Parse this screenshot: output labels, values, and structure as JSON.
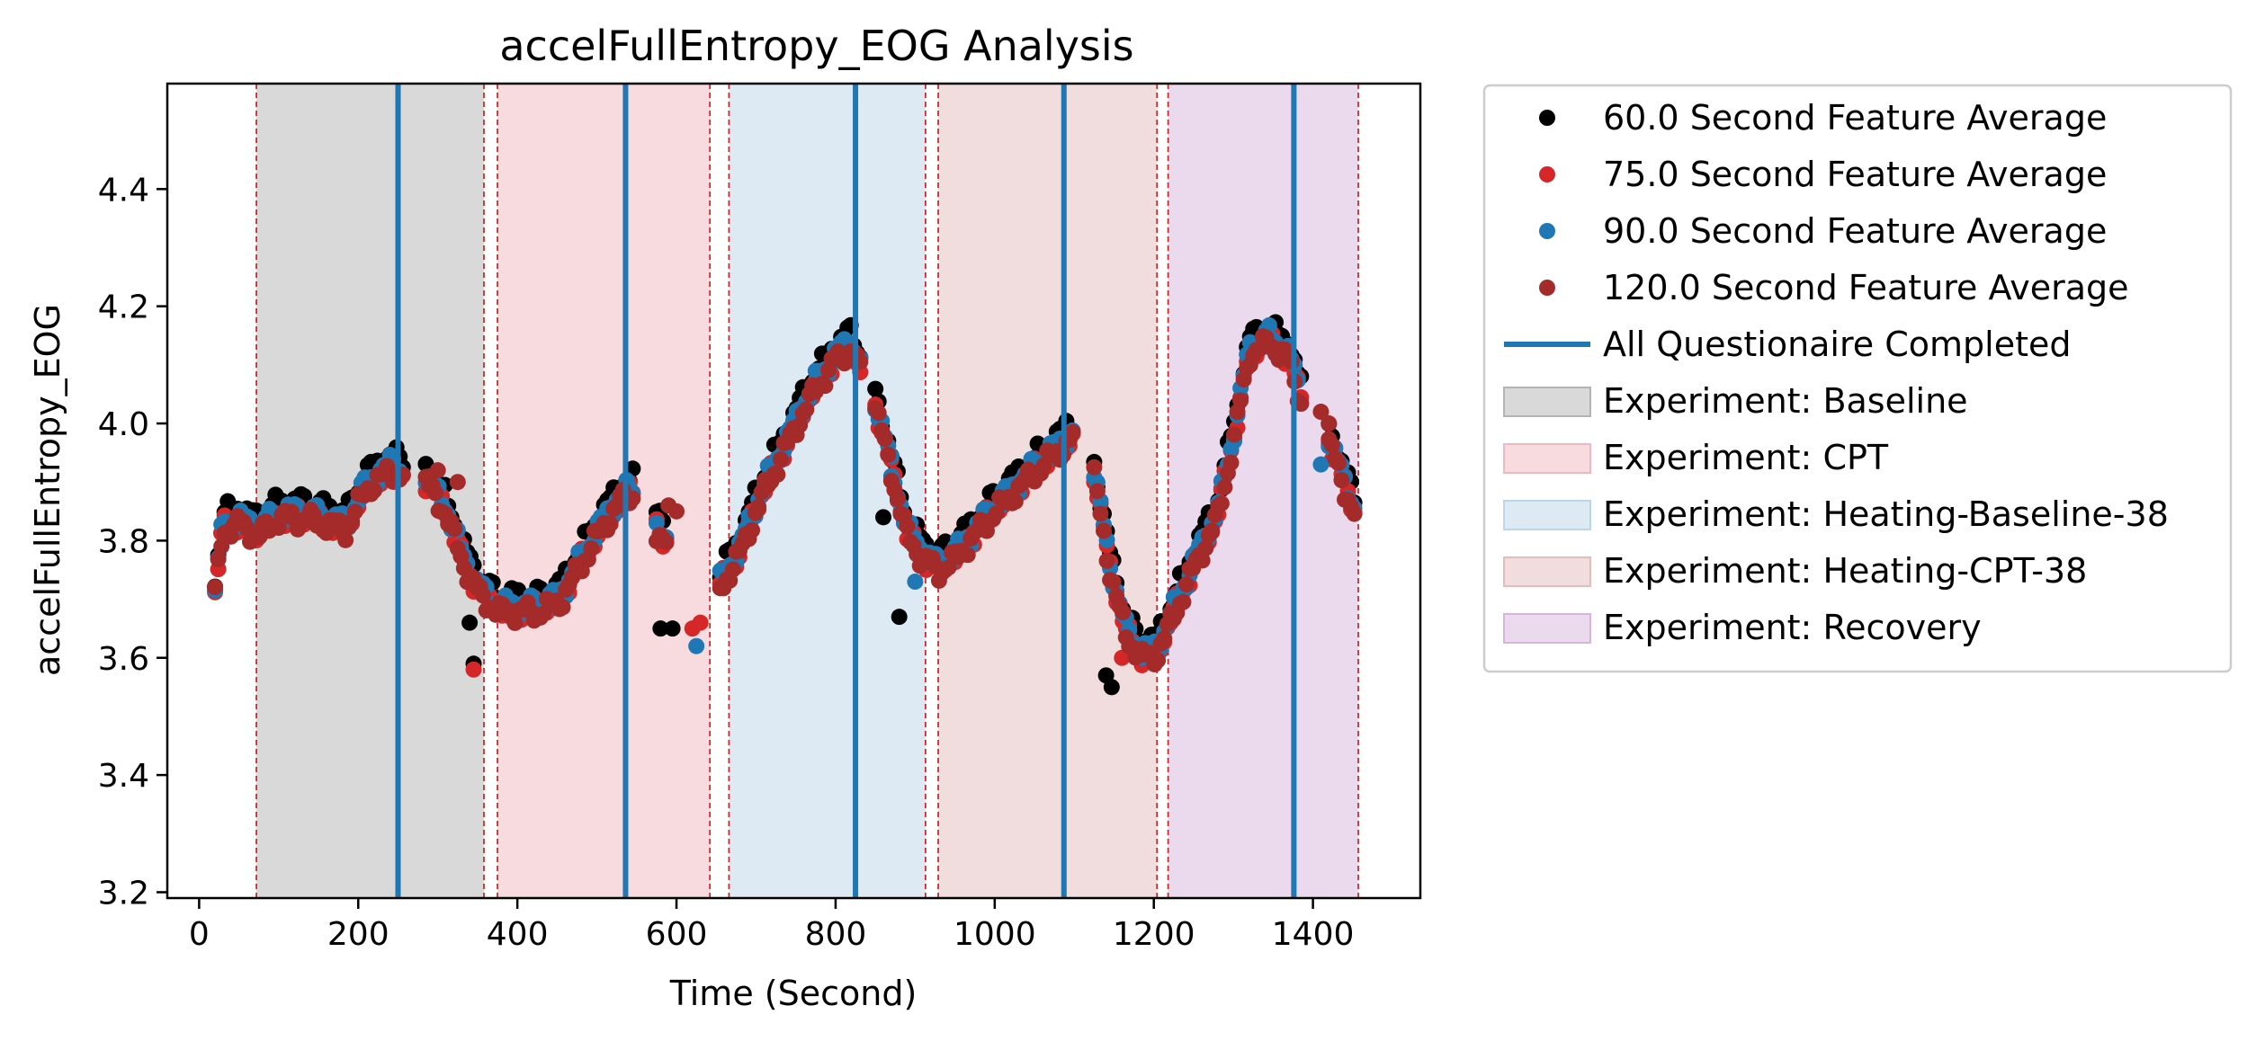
{
  "chart_data": {
    "type": "scatter",
    "title": "accelFullEntropy_EOG Analysis",
    "xlabel": "Time (Second)",
    "ylabel": "accelFullEntropy_EOG",
    "xlim": [
      -40,
      1535
    ],
    "ylim": [
      3.19,
      4.58
    ],
    "xticks": [
      0,
      200,
      400,
      600,
      800,
      1000,
      1200,
      1400
    ],
    "yticks": [
      3.2,
      3.4,
      3.6,
      3.8,
      4.0,
      4.2,
      4.4
    ],
    "xtick_labels": [
      "0",
      "200",
      "400",
      "600",
      "800",
      "1000",
      "1200",
      "1400"
    ],
    "ytick_labels": [
      "3.2",
      "3.4",
      "3.6",
      "3.8",
      "4.0",
      "4.2",
      "4.4"
    ],
    "grid": false,
    "legend_position": "outside-right",
    "experiments": [
      {
        "name": "Experiment: Baseline",
        "start": 72,
        "end": 358,
        "color": "#b3b3b3",
        "alpha": 0.5
      },
      {
        "name": "Experiment: CPT",
        "start": 375,
        "end": 642,
        "color": "#f2b8bf",
        "alpha": 0.5
      },
      {
        "name": "Experiment: Heating-Baseline-38",
        "start": 666,
        "end": 913,
        "color": "#bcd6e9",
        "alpha": 0.5
      },
      {
        "name": "Experiment: Heating-CPT-38",
        "start": 929,
        "end": 1204,
        "color": "#e4bcbc",
        "alpha": 0.5
      },
      {
        "name": "Experiment: Recovery",
        "start": 1218,
        "end": 1457,
        "color": "#d8b4dc",
        "alpha": 0.5
      }
    ],
    "questionnaire_lines": {
      "name": "All Questionaire Completed",
      "color": "#1f77b4",
      "x": [
        250,
        536,
        825,
        1087,
        1376
      ]
    },
    "boundary_lines": {
      "color": "#d62728",
      "x": [
        72,
        358,
        375,
        642,
        666,
        913,
        929,
        1204,
        1218,
        1457
      ]
    },
    "curve_segments": [
      [
        [
          20,
          3.72
        ],
        [
          30,
          3.83
        ],
        [
          50,
          3.84
        ],
        [
          75,
          3.82
        ],
        [
          100,
          3.85
        ],
        [
          130,
          3.85
        ],
        [
          160,
          3.84
        ],
        [
          185,
          3.83
        ],
        [
          210,
          3.9
        ],
        [
          240,
          3.93
        ],
        [
          258,
          3.92
        ]
      ],
      [
        [
          285,
          3.91
        ],
        [
          310,
          3.86
        ],
        [
          330,
          3.78
        ],
        [
          352,
          3.72
        ],
        [
          375,
          3.69
        ],
        [
          400,
          3.69
        ],
        [
          430,
          3.69
        ],
        [
          455,
          3.71
        ],
        [
          480,
          3.77
        ],
        [
          505,
          3.83
        ],
        [
          530,
          3.88
        ],
        [
          548,
          3.89
        ]
      ],
      [
        [
          575,
          3.83
        ],
        [
          590,
          3.8
        ]
      ],
      [
        [
          655,
          3.73
        ],
        [
          680,
          3.79
        ],
        [
          705,
          3.88
        ],
        [
          730,
          3.95
        ],
        [
          755,
          4.02
        ],
        [
          775,
          4.07
        ],
        [
          800,
          4.12
        ],
        [
          818,
          4.14
        ],
        [
          832,
          4.1
        ]
      ],
      [
        [
          850,
          4.04
        ],
        [
          870,
          3.93
        ],
        [
          890,
          3.82
        ],
        [
          910,
          3.78
        ],
        [
          930,
          3.76
        ],
        [
          950,
          3.78
        ],
        [
          975,
          3.82
        ],
        [
          1000,
          3.86
        ],
        [
          1030,
          3.9
        ],
        [
          1060,
          3.94
        ],
        [
          1085,
          3.97
        ],
        [
          1100,
          3.99
        ]
      ],
      [
        [
          1125,
          3.92
        ],
        [
          1145,
          3.76
        ],
        [
          1165,
          3.65
        ],
        [
          1185,
          3.61
        ],
        [
          1205,
          3.62
        ],
        [
          1230,
          3.7
        ],
        [
          1255,
          3.78
        ],
        [
          1280,
          3.85
        ],
        [
          1300,
          3.98
        ],
        [
          1320,
          4.13
        ],
        [
          1345,
          4.15
        ],
        [
          1370,
          4.12
        ],
        [
          1385,
          4.05
        ]
      ],
      [
        [
          1420,
          3.98
        ],
        [
          1440,
          3.9
        ],
        [
          1455,
          3.85
        ]
      ]
    ],
    "series": [
      {
        "name": "60.0 Second Feature Average",
        "color": "#000000",
        "offset": 0.025,
        "phase": 0.0,
        "extra": [
          [
            340,
            3.66
          ],
          [
            345,
            3.59
          ],
          [
            580,
            3.65
          ],
          [
            595,
            3.65
          ],
          [
            880,
            3.67
          ],
          [
            1147,
            3.55
          ],
          [
            1140,
            3.57
          ],
          [
            860,
            3.84
          ]
        ]
      },
      {
        "name": "75.0 Second Feature Average",
        "color": "#d62728",
        "offset": -0.01,
        "phase": 1.3,
        "extra": [
          [
            345,
            3.58
          ],
          [
            620,
            3.65
          ],
          [
            1160,
            3.6
          ],
          [
            630,
            3.66
          ]
        ]
      },
      {
        "name": "90.0 Second Feature Average",
        "color": "#1f77b4",
        "offset": 0.0,
        "phase": 2.1,
        "extra": [
          [
            625,
            3.62
          ],
          [
            870,
            3.91
          ],
          [
            900,
            3.73
          ],
          [
            1410,
            3.93
          ]
        ]
      },
      {
        "name": "120.0 Second Feature Average",
        "color": "#a52a2a",
        "offset": -0.02,
        "phase": 3.4,
        "extra": [
          [
            300,
            3.92
          ],
          [
            325,
            3.9
          ],
          [
            590,
            3.86
          ],
          [
            600,
            3.85
          ],
          [
            1410,
            4.02
          ],
          [
            1420,
            4.0
          ]
        ]
      }
    ]
  }
}
